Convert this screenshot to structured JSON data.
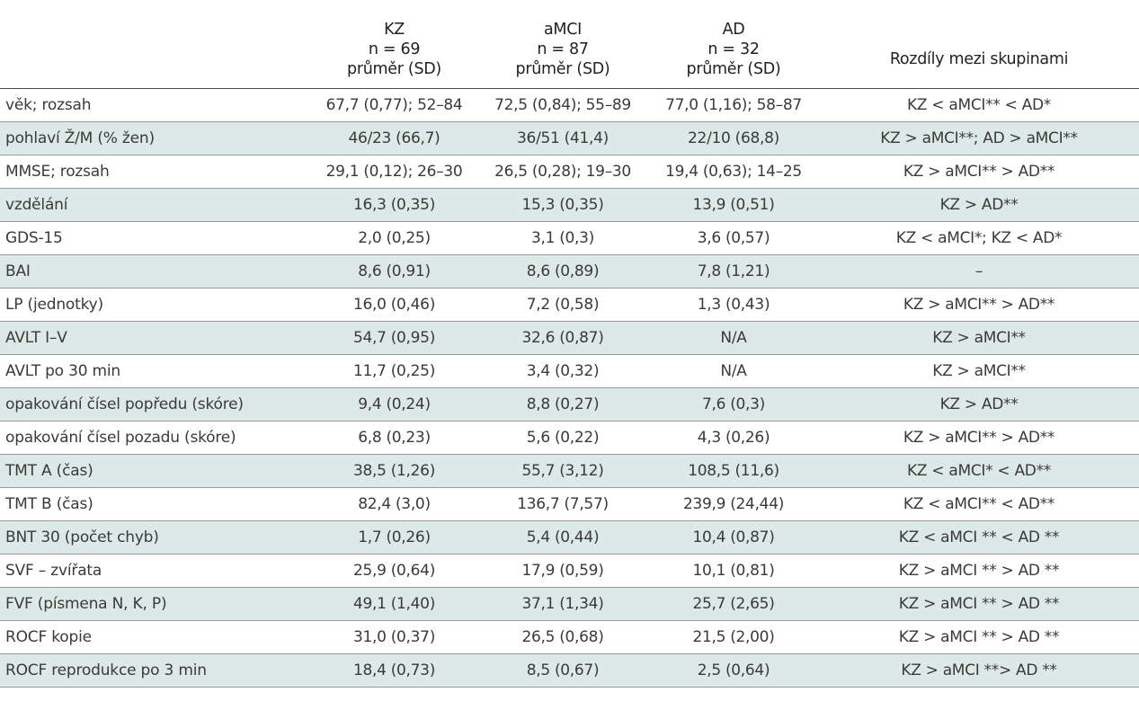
{
  "table": {
    "headers": [
      {
        "lines": [
          "KZ",
          "n = 69",
          "průměr (SD)"
        ]
      },
      {
        "lines": [
          "aMCI",
          "n = 87",
          "průměr (SD)"
        ]
      },
      {
        "lines": [
          "AD",
          "n = 32",
          "průměr (SD)"
        ]
      },
      {
        "lines": [
          "Rozdíly mezi skupinami"
        ]
      }
    ],
    "rows": [
      {
        "label": "věk; rozsah",
        "kz": "67,7 (0,77); 52–84",
        "amci": "72,5 (0,84); 55–89",
        "ad": "77,0 (1,16); 58–87",
        "diff": "KZ < aMCI** < AD*"
      },
      {
        "label": "pohlaví Ž/M (% žen)",
        "kz": "46/23 (66,7)",
        "amci": "36/51 (41,4)",
        "ad": "22/10 (68,8)",
        "diff": "KZ > aMCI**; AD > aMCI**"
      },
      {
        "label": "MMSE; rozsah",
        "kz": "29,1 (0,12); 26–30",
        "amci": "26,5 (0,28); 19–30",
        "ad": "19,4 (0,63); 14–25",
        "diff": "KZ > aMCI** > AD**"
      },
      {
        "label": "vzdělání",
        "kz": "16,3 (0,35)",
        "amci": "15,3 (0,35)",
        "ad": "13,9 (0,51)",
        "diff": "KZ > AD**"
      },
      {
        "label": "GDS-15",
        "kz": "2,0 (0,25)",
        "amci": "3,1 (0,3)",
        "ad": "3,6 (0,57)",
        "diff": "KZ < aMCI*; KZ < AD*"
      },
      {
        "label": "BAI",
        "kz": "8,6 (0,91)",
        "amci": "8,6 (0,89)",
        "ad": "7,8 (1,21)",
        "diff": "–"
      },
      {
        "label": "LP (jednotky)",
        "kz": "16,0 (0,46)",
        "amci": "7,2 (0,58)",
        "ad": "1,3 (0,43)",
        "diff": "KZ > aMCI** > AD**"
      },
      {
        "label": "AVLT I–V",
        "kz": "54,7 (0,95)",
        "amci": "32,6 (0,87)",
        "ad": "N/A",
        "diff": "KZ > aMCI**"
      },
      {
        "label": "AVLT po 30 min",
        "kz": "11,7 (0,25)",
        "amci": "3,4 (0,32)",
        "ad": "N/A",
        "diff": "KZ > aMCI**"
      },
      {
        "label": "opakování čísel popředu (skóre)",
        "kz": "9,4 (0,24)",
        "amci": "8,8 (0,27)",
        "ad": "7,6 (0,3)",
        "diff": "KZ > AD**"
      },
      {
        "label": "opakování čísel pozadu (skóre)",
        "kz": "6,8 (0,23)",
        "amci": "5,6 (0,22)",
        "ad": "4,3 (0,26)",
        "diff": "KZ > aMCI** > AD**"
      },
      {
        "label": "TMT A (čas)",
        "kz": "38,5 (1,26)",
        "amci": "55,7 (3,12)",
        "ad": "108,5 (11,6)",
        "diff": "KZ < aMCI* < AD**"
      },
      {
        "label": "TMT B (čas)",
        "kz": "82,4 (3,0)",
        "amci": "136,7 (7,57)",
        "ad": "239,9 (24,44)",
        "diff": "KZ < aMCI** < AD**"
      },
      {
        "label": "BNT 30 (počet chyb)",
        "kz": "1,7 (0,26)",
        "amci": "5,4 (0,44)",
        "ad": "10,4 (0,87)",
        "diff": "KZ < aMCI ** < AD **"
      },
      {
        "label": "SVF – zvířata",
        "kz": "25,9 (0,64)",
        "amci": "17,9 (0,59)",
        "ad": "10,1 (0,81)",
        "diff": "KZ > aMCI ** > AD **"
      },
      {
        "label": "FVF (písmena N, K, P)",
        "kz": "49,1 (1,40)",
        "amci": "37,1 (1,34)",
        "ad": "25,7 (2,65)",
        "diff": "KZ > aMCI ** > AD **"
      },
      {
        "label": "ROCF kopie",
        "kz": "31,0 (0,37)",
        "amci": "26,5 (0,68)",
        "ad": "21,5 (2,00)",
        "diff": "KZ > aMCI ** > AD **"
      },
      {
        "label": "ROCF reprodukce po 3 min",
        "kz": "18,4 (0,73)",
        "amci": "8,5 (0,67)",
        "ad": "2,5 (0,64)",
        "diff": "KZ > aMCI **> AD **"
      }
    ]
  },
  "colors": {
    "stripe": "#dde9e6",
    "text": "#3a3a3a",
    "rule": "#9a9a9a"
  }
}
